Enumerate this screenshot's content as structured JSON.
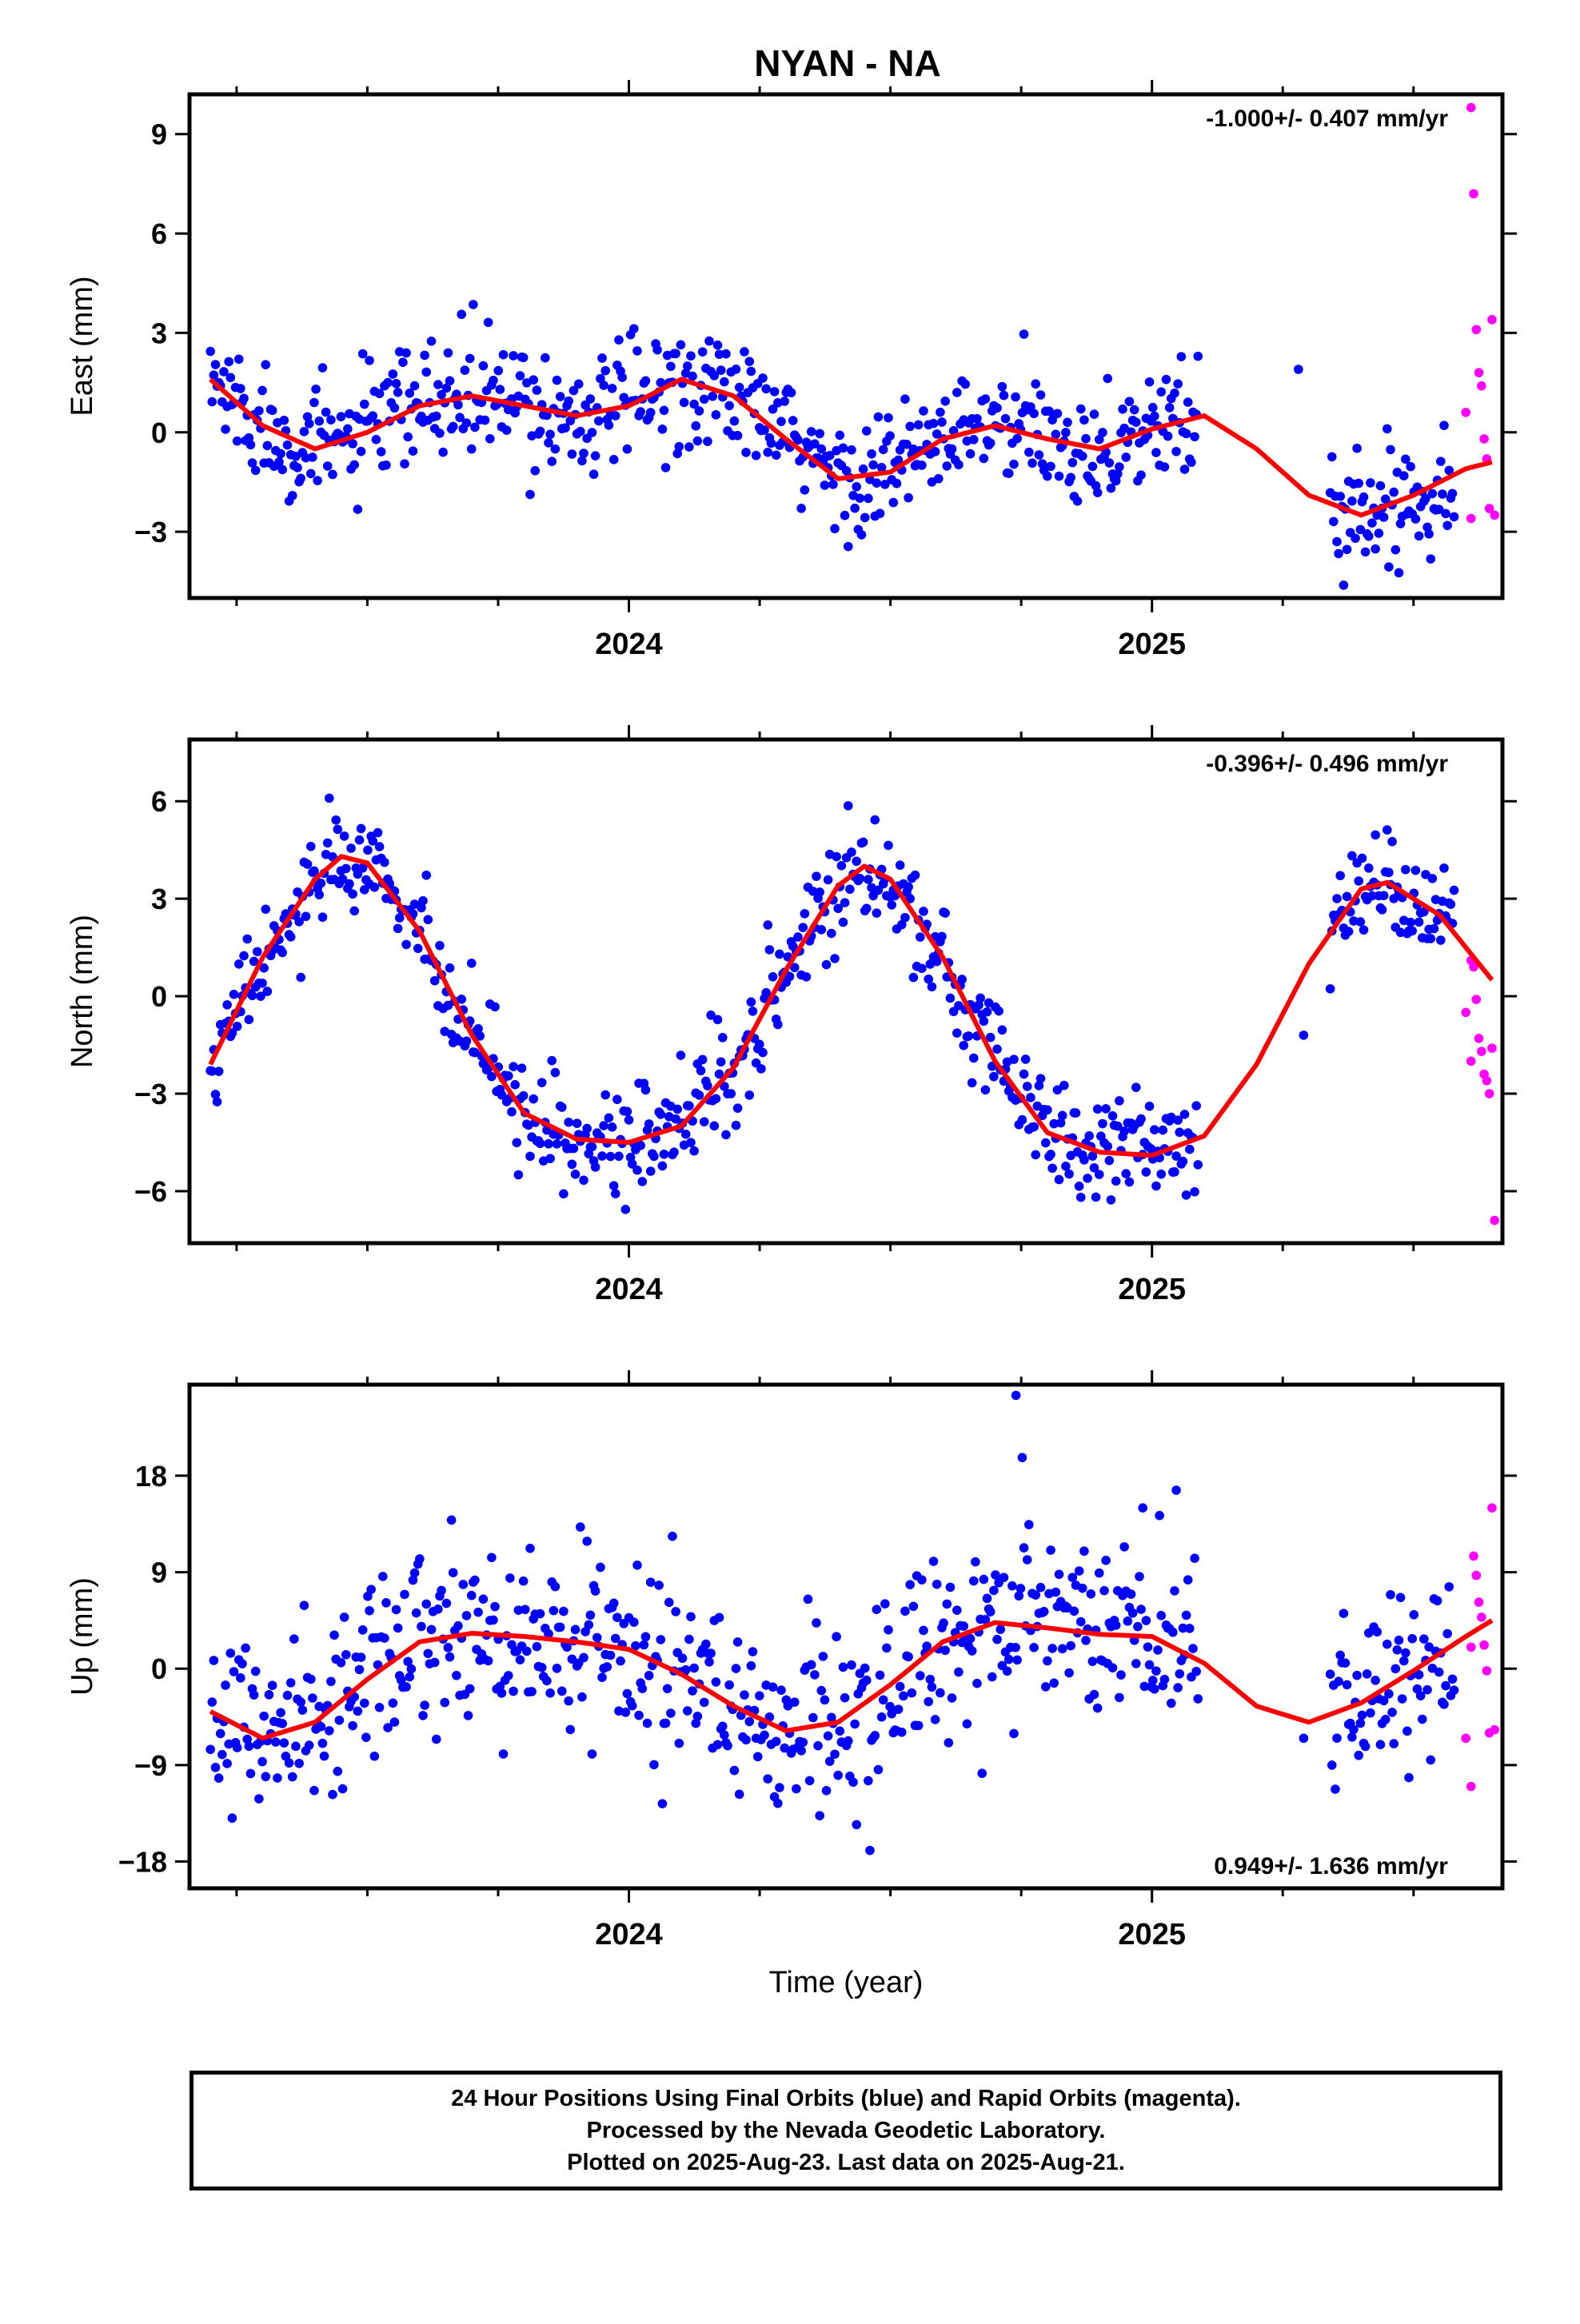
{
  "title": "NYAN - NA",
  "colors": {
    "final": "#0000ff",
    "rapid": "#ff00ff",
    "fit": "#ff0000",
    "frame": "#000000"
  },
  "footer": {
    "line1": "24 Hour Positions Using Final Orbits (blue) and Rapid Orbits (magenta).",
    "line2": "Processed by the Nevada Geodetic Laboratory.",
    "line3": "Plotted on 2025-Aug-23. Last data on 2025-Aug-21."
  },
  "chart_data": [
    {
      "type": "scatter",
      "component": "east",
      "ylabel": "East (mm)",
      "xlabel": "",
      "rate_label": "-1.000+/- 0.407 mm/yr",
      "xlim": [
        2023.16,
        2025.67
      ],
      "ylim": [
        -5.0,
        10.2
      ],
      "yticks": [
        -3,
        0,
        3,
        6,
        9
      ],
      "xticks": [
        2024,
        2025
      ],
      "grid": false,
      "trend": [
        [
          2023.2,
          1.6
        ],
        [
          2023.3,
          0.2
        ],
        [
          2023.4,
          -0.5
        ],
        [
          2023.5,
          0.0
        ],
        [
          2023.6,
          0.8
        ],
        [
          2023.7,
          1.1
        ],
        [
          2023.8,
          0.8
        ],
        [
          2023.9,
          0.5
        ],
        [
          2024.0,
          0.8
        ],
        [
          2024.1,
          1.6
        ],
        [
          2024.2,
          1.1
        ],
        [
          2024.3,
          -0.2
        ],
        [
          2024.4,
          -1.4
        ],
        [
          2024.5,
          -1.2
        ],
        [
          2024.6,
          -0.2
        ],
        [
          2024.7,
          0.2
        ],
        [
          2024.8,
          -0.2
        ],
        [
          2024.9,
          -0.5
        ],
        [
          2025.0,
          0.1
        ],
        [
          2025.1,
          0.5
        ],
        [
          2025.2,
          -0.5
        ],
        [
          2025.3,
          -1.9
        ],
        [
          2025.4,
          -2.5
        ],
        [
          2025.5,
          -1.9
        ],
        [
          2025.6,
          -1.1
        ],
        [
          2025.65,
          -0.9
        ]
      ],
      "final_model": {
        "x_start": 2023.2,
        "x_end": 2025.58,
        "gap": [
          2025.09,
          2025.34
        ],
        "outliers": [
          [
            2025.28,
            1.9
          ]
        ],
        "step": 0.0032,
        "scatter": 0.9
      },
      "rapid_points": [
        [
          2025.61,
          9.8
        ],
        [
          2025.615,
          7.2
        ],
        [
          2025.62,
          3.1
        ],
        [
          2025.625,
          1.8
        ],
        [
          2025.63,
          1.4
        ],
        [
          2025.635,
          -0.2
        ],
        [
          2025.64,
          -0.8
        ],
        [
          2025.645,
          -2.3
        ],
        [
          2025.65,
          3.4
        ],
        [
          2025.655,
          -2.5
        ],
        [
          2025.6,
          0.6
        ],
        [
          2025.61,
          -2.6
        ]
      ]
    },
    {
      "type": "scatter",
      "component": "north",
      "ylabel": "North (mm)",
      "xlabel": "",
      "rate_label": "-0.396+/- 0.496 mm/yr",
      "xlim": [
        2023.16,
        2025.67
      ],
      "ylim": [
        -7.6,
        7.9
      ],
      "yticks": [
        -6,
        -3,
        0,
        3,
        6
      ],
      "xticks": [
        2024,
        2025
      ],
      "grid": false,
      "trend": [
        [
          2023.2,
          -2.1
        ],
        [
          2023.3,
          1.2
        ],
        [
          2023.4,
          3.6
        ],
        [
          2023.45,
          4.3
        ],
        [
          2023.5,
          4.1
        ],
        [
          2023.6,
          2.0
        ],
        [
          2023.7,
          -1.2
        ],
        [
          2023.8,
          -3.6
        ],
        [
          2023.9,
          -4.4
        ],
        [
          2024.0,
          -4.5
        ],
        [
          2024.1,
          -4.0
        ],
        [
          2024.2,
          -2.2
        ],
        [
          2024.3,
          0.8
        ],
        [
          2024.4,
          3.4
        ],
        [
          2024.45,
          4.0
        ],
        [
          2024.5,
          3.6
        ],
        [
          2024.6,
          1.2
        ],
        [
          2024.7,
          -2.0
        ],
        [
          2024.8,
          -4.2
        ],
        [
          2024.9,
          -4.8
        ],
        [
          2025.0,
          -4.9
        ],
        [
          2025.1,
          -4.3
        ],
        [
          2025.2,
          -2.1
        ],
        [
          2025.3,
          1.0
        ],
        [
          2025.4,
          3.3
        ],
        [
          2025.45,
          3.5
        ],
        [
          2025.55,
          2.5
        ],
        [
          2025.65,
          0.5
        ]
      ],
      "final_model": {
        "x_start": 2023.2,
        "x_end": 2025.58,
        "gap": [
          2025.09,
          2025.34
        ],
        "outliers": [
          [
            2025.29,
            -1.2
          ]
        ],
        "step": 0.0032,
        "scatter": 0.85
      },
      "rapid_points": [
        [
          2025.61,
          1.1
        ],
        [
          2025.615,
          0.9
        ],
        [
          2025.62,
          -0.1
        ],
        [
          2025.625,
          -1.3
        ],
        [
          2025.63,
          -1.7
        ],
        [
          2025.635,
          -2.4
        ],
        [
          2025.64,
          -2.6
        ],
        [
          2025.645,
          -3.0
        ],
        [
          2025.65,
          -1.6
        ],
        [
          2025.655,
          -6.9
        ],
        [
          2025.6,
          -0.5
        ],
        [
          2025.61,
          -2.0
        ]
      ]
    },
    {
      "type": "scatter",
      "component": "up",
      "ylabel": "Up (mm)",
      "xlabel": "Time (year)",
      "rate_label": "0.949+/- 1.636 mm/yr",
      "xlim": [
        2023.16,
        2025.67
      ],
      "ylim": [
        -20.5,
        26.5
      ],
      "yticks": [
        -18,
        -9,
        0,
        9,
        18
      ],
      "xticks": [
        2024,
        2025
      ],
      "grid": false,
      "trend": [
        [
          2023.2,
          -4.0
        ],
        [
          2023.3,
          -6.5
        ],
        [
          2023.4,
          -5.0
        ],
        [
          2023.5,
          -1.0
        ],
        [
          2023.6,
          2.5
        ],
        [
          2023.7,
          3.3
        ],
        [
          2023.8,
          3.0
        ],
        [
          2023.9,
          2.5
        ],
        [
          2024.0,
          1.8
        ],
        [
          2024.1,
          -0.5
        ],
        [
          2024.2,
          -3.5
        ],
        [
          2024.3,
          -5.8
        ],
        [
          2024.4,
          -5.0
        ],
        [
          2024.5,
          -1.5
        ],
        [
          2024.6,
          2.5
        ],
        [
          2024.7,
          4.3
        ],
        [
          2024.8,
          3.8
        ],
        [
          2024.9,
          3.2
        ],
        [
          2025.0,
          3.0
        ],
        [
          2025.1,
          0.5
        ],
        [
          2025.2,
          -3.5
        ],
        [
          2025.3,
          -5.0
        ],
        [
          2025.4,
          -3.2
        ],
        [
          2025.5,
          -0.2
        ],
        [
          2025.6,
          3.0
        ],
        [
          2025.65,
          4.5
        ]
      ],
      "final_model": {
        "x_start": 2023.2,
        "x_end": 2025.58,
        "gap": [
          2025.09,
          2025.34
        ],
        "outliers": [
          [
            2025.29,
            -6.5
          ],
          [
            2024.74,
            25.5
          ]
        ],
        "step": 0.0032,
        "scatter": 4.2
      },
      "rapid_points": [
        [
          2025.61,
          -11.0
        ],
        [
          2025.615,
          10.5
        ],
        [
          2025.62,
          8.7
        ],
        [
          2025.625,
          6.2
        ],
        [
          2025.63,
          4.8
        ],
        [
          2025.635,
          2.2
        ],
        [
          2025.64,
          -0.2
        ],
        [
          2025.645,
          -6.0
        ],
        [
          2025.65,
          15.0
        ],
        [
          2025.655,
          -5.7
        ],
        [
          2025.6,
          -6.5
        ],
        [
          2025.61,
          2.0
        ]
      ]
    }
  ]
}
